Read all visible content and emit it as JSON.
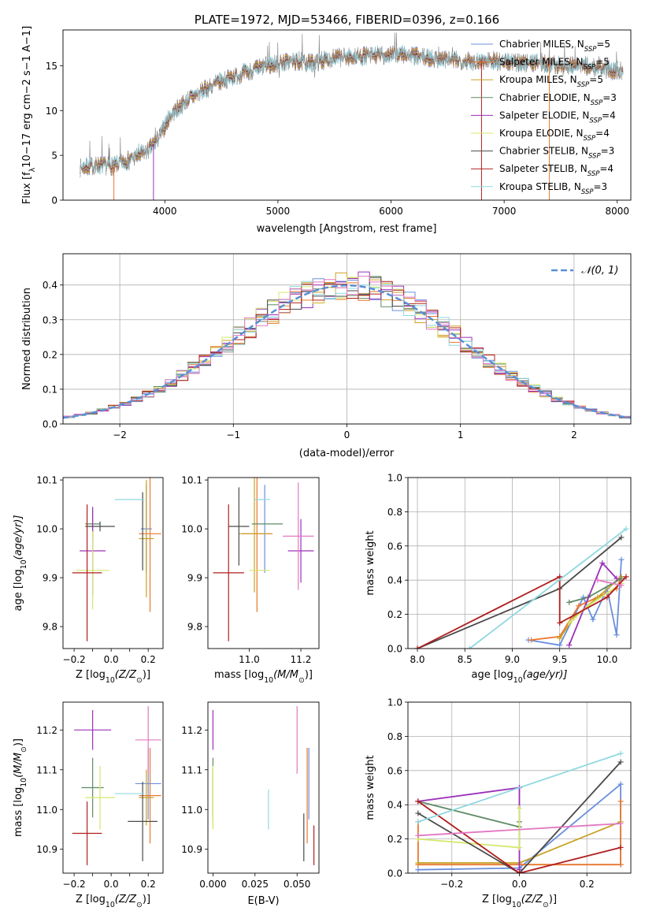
{
  "chart_data": [
    {
      "panel": "spectrum",
      "type": "line",
      "title": "PLATE=1972, MJD=53466, FIBERID=0396, z=0.166",
      "xlabel": "wavelength [Angstrom, rest frame]",
      "ylabel": "Flux [f$_\\lambda$10$^{-17}$ erg cm$^{-2}$ s$^{-1}$ A$^{-1}$]",
      "xlim": [
        3100,
        8120
      ],
      "ylim": [
        0,
        19
      ],
      "xticks": [
        4000,
        5000,
        6000,
        7000,
        8000
      ],
      "yticks": [
        0,
        5,
        10,
        15
      ],
      "legend_position": "right",
      "data_color": "#7f7f7f",
      "continuum": {
        "x": [
          3250,
          3400,
          3550,
          3700,
          3850,
          3950,
          4050,
          4200,
          4350,
          4500,
          4700,
          4900,
          5100,
          5300,
          5500,
          5700,
          5900,
          6100,
          6300,
          6500,
          6700,
          6900,
          7100,
          7300,
          7500,
          7700,
          7900,
          8050
        ],
        "y": [
          3.6,
          3.9,
          3.8,
          4.6,
          5.5,
          7.0,
          9.5,
          11.2,
          12.3,
          13.3,
          14.2,
          15.0,
          15.5,
          15.3,
          15.9,
          16.0,
          16.2,
          16.3,
          15.9,
          15.7,
          15.5,
          15.6,
          15.3,
          15.4,
          15.0,
          15.0,
          14.6,
          14.4
        ]
      },
      "series": [
        {
          "name": "Chabrier MILES, N$_{SSP}$=5",
          "label": "Chabrier MILES, N",
          "sub": "SSP",
          "suffix": "=5",
          "color": "#6b8fdc"
        },
        {
          "name": "Salpeter MILES, N$_{SSP}$=5",
          "label": "Salpeter MILES, N",
          "sub": "SSP",
          "suffix": "=5",
          "color": "#e8772e"
        },
        {
          "name": "Kroupa MILES, N$_{SSP}$=5",
          "label": "Kroupa MILES, N",
          "sub": "SSP",
          "suffix": "=5",
          "color": "#c9a227"
        },
        {
          "name": "Chabrier ELODIE, N$_{SSP}$=3",
          "label": "Chabrier ELODIE, N",
          "sub": "SSP",
          "suffix": "=3",
          "color": "#5e8a65"
        },
        {
          "name": "Salpeter ELODIE, N$_{SSP}$=4",
          "label": "Salpeter ELODIE, N",
          "sub": "SSP",
          "suffix": "=4",
          "color": "#9b30b8"
        },
        {
          "name": "Kroupa ELODIE, N$_{SSP}$=4",
          "label": "Kroupa ELODIE, N",
          "sub": "SSP",
          "suffix": "=4",
          "color": "#d4e86a"
        },
        {
          "name": "Chabrier STELIB, N$_{SSP}$=3",
          "label": "Chabrier STELIB, N",
          "sub": "SSP",
          "suffix": "=3",
          "color": "#4a4a4a"
        },
        {
          "name": "Salpeter STELIB, N$_{SSP}$=4",
          "label": "Salpeter STELIB, N",
          "sub": "SSP",
          "suffix": "=4",
          "color": "#b01e1e"
        },
        {
          "name": "Kroupa STELIB, N$_{SSP}$=3",
          "label": "Kroupa STELIB, N",
          "sub": "SSP",
          "suffix": "=3",
          "color": "#8fd8e0"
        }
      ],
      "drops_to_zero": [
        3550,
        3900,
        6800,
        7400
      ]
    },
    {
      "panel": "residuals",
      "type": "histogram",
      "xlabel": "(data-model)/error",
      "ylabel": "Normed distribution",
      "xlim": [
        -2.5,
        2.5
      ],
      "ylim": [
        0,
        0.49
      ],
      "xticks": [
        -2,
        -1,
        0,
        1,
        2
      ],
      "yticks": [
        0.0,
        0.1,
        0.2,
        0.3,
        0.4
      ],
      "grid": true,
      "bin_width": 0.1,
      "reference_curve": {
        "name": "N(0,1)",
        "legend": "𝒩(0, 1)",
        "color": "#5b8fd6",
        "style": "dashed"
      },
      "legend_position": "top-right"
    },
    {
      "panel": "age_vs_Z",
      "type": "errorbar",
      "xlabel": "Z [log$_{10}$($Z/Z_\\odot$)]",
      "xlabel_text": "Z [log",
      "xlabel_sub": "10",
      "xlabel_tail": "(Z/Z",
      "xlabel_end": ")]",
      "ylabel": "age  [log$_{10}$($age/yr$)]",
      "ylabel_text": "age  [log",
      "ylabel_sub": "10",
      "ylabel_tail": "(age/yr)]",
      "xlim": [
        -0.26,
        0.28
      ],
      "ylim": [
        9.755,
        10.105
      ],
      "xticks": [
        -0.2,
        -0.1,
        0.0,
        0.1,
        0.2
      ],
      "xticklabels": [
        "−0.2",
        "",
        "0.0",
        "",
        "0.2"
      ],
      "yticks": [
        9.8,
        9.9,
        10.0,
        10.1
      ],
      "points": [
        {
          "x": 0.19,
          "y": 10.0,
          "xerr": 0.03,
          "yerr": 0.09,
          "color": "#6b8fdc"
        },
        {
          "x": 0.21,
          "y": 9.99,
          "xerr": 0.06,
          "yerr": 0.16,
          "color": "#e8772e"
        },
        {
          "x": 0.19,
          "y": 9.98,
          "xerr": 0.04,
          "yerr": 0.12,
          "color": "#c9a227"
        },
        {
          "x": -0.1,
          "y": 10.01,
          "xerr": 0.04,
          "yerr": 0.03,
          "color": "#5e8a65"
        },
        {
          "x": -0.1,
          "y": 9.955,
          "xerr": 0.07,
          "yerr": 0.09,
          "color": "#9b30b8"
        },
        {
          "x": -0.1,
          "y": 9.915,
          "xerr": 0.09,
          "yerr": 0.08,
          "color": "#d4e86a"
        },
        {
          "x": -0.06,
          "y": 10.005,
          "xerr": 0.08,
          "yerr": 0.01,
          "color": "#4a4a4a"
        },
        {
          "x": 0.17,
          "y": 9.995,
          "xerr": 0.0,
          "yerr": 0.08,
          "color": "#4a4a4a"
        },
        {
          "x": -0.13,
          "y": 9.91,
          "xerr": 0.08,
          "yerr": 0.14,
          "color": "#b01e1e"
        },
        {
          "x": 0.1,
          "y": 10.06,
          "xerr": 0.08,
          "yerr": 0.0,
          "color": "#8fd8e0"
        }
      ]
    },
    {
      "panel": "age_vs_mass",
      "type": "errorbar",
      "xlabel": "mass [log$_{10}$($M/M_\\odot$)]",
      "xlabel_text": "mass [log",
      "xlabel_sub": "10",
      "xlabel_tail": "(M/M",
      "xlabel_end": ")]",
      "xlim": [
        10.84,
        11.27
      ],
      "ylim": [
        9.755,
        10.105
      ],
      "xticks": [
        11.0,
        11.2
      ],
      "yticks": [
        9.8,
        9.9,
        10.0,
        10.1
      ],
      "points": [
        {
          "x": 11.06,
          "y": 10.0,
          "xerr": 0.0,
          "yerr": 0.09,
          "color": "#6b8fdc"
        },
        {
          "x": 11.03,
          "y": 9.99,
          "xerr": 0.06,
          "yerr": 0.16,
          "color": "#e8772e"
        },
        {
          "x": 11.02,
          "y": 9.99,
          "xerr": 0.06,
          "yerr": 0.12,
          "color": "#c9a227"
        },
        {
          "x": 11.07,
          "y": 10.01,
          "xerr": 0.06,
          "yerr": 0.0,
          "color": "#5e8a65"
        },
        {
          "x": 11.2,
          "y": 9.955,
          "xerr": 0.05,
          "yerr": 0.065,
          "color": "#9b30b8"
        },
        {
          "x": 11.04,
          "y": 9.915,
          "xerr": 0.04,
          "yerr": 0.0,
          "color": "#d4e86a"
        },
        {
          "x": 10.96,
          "y": 10.005,
          "xerr": 0.04,
          "yerr": 0.08,
          "color": "#4a4a4a"
        },
        {
          "x": 10.92,
          "y": 9.91,
          "xerr": 0.06,
          "yerr": 0.14,
          "color": "#b01e1e"
        },
        {
          "x": 11.05,
          "y": 10.06,
          "xerr": 0.03,
          "yerr": 0.0,
          "color": "#8fd8e0"
        },
        {
          "x": 11.19,
          "y": 9.985,
          "xerr": 0.06,
          "yerr": 0.11,
          "color": "#e377c2"
        }
      ]
    },
    {
      "panel": "weight_vs_age",
      "type": "line",
      "xlabel": "age  [log$_{10}$($age/yr$)]",
      "xlabel_text": "age  [log",
      "xlabel_sub": "10",
      "xlabel_tail": "(age/yr)]",
      "ylabel": "mass weight",
      "xlim": [
        7.9,
        10.25
      ],
      "ylim": [
        0,
        1
      ],
      "xticks": [
        8.0,
        8.5,
        9.0,
        9.5,
        10.0
      ],
      "yticks": [
        0.0,
        0.2,
        0.4,
        0.6,
        0.8,
        1.0
      ],
      "grid": true,
      "series": [
        {
          "color": "#6b8fdc",
          "x": [
            9.17,
            9.5,
            9.75,
            9.85,
            10.0,
            10.1,
            10.15
          ],
          "y": [
            0.05,
            0.02,
            0.3,
            0.17,
            0.35,
            0.08,
            0.52
          ]
        },
        {
          "color": "#e8772e",
          "x": [
            9.2,
            9.5,
            9.7,
            10.1,
            10.15
          ],
          "y": [
            0.05,
            0.07,
            0.25,
            0.35,
            0.42
          ]
        },
        {
          "color": "#c9a227",
          "x": [
            9.5,
            9.65,
            9.9,
            10.15
          ],
          "y": [
            0.06,
            0.18,
            0.3,
            0.42
          ]
        },
        {
          "color": "#5e8a65",
          "x": [
            9.6,
            9.8,
            10.15
          ],
          "y": [
            0.27,
            0.3,
            0.41
          ]
        },
        {
          "color": "#9b30b8",
          "x": [
            9.6,
            9.95,
            10.1
          ],
          "y": [
            0.02,
            0.5,
            0.41
          ]
        },
        {
          "color": "#d4e86a",
          "x": [
            9.6,
            9.8,
            10.15
          ],
          "y": [
            0.15,
            0.25,
            0.38
          ]
        },
        {
          "color": "#4a4a4a",
          "x": [
            8.0,
            9.5,
            10.15
          ],
          "y": [
            0.0,
            0.35,
            0.65
          ]
        },
        {
          "color": "#b01e1e",
          "x": [
            8.0,
            9.5,
            9.5,
            10.0,
            10.2
          ],
          "y": [
            0.0,
            0.42,
            0.15,
            0.3,
            0.42
          ]
        },
        {
          "color": "#8fd8e0",
          "x": [
            8.55,
            10.2
          ],
          "y": [
            0.0,
            0.7
          ]
        },
        {
          "color": "#e377c2",
          "x": [
            9.9,
            10.15
          ],
          "y": [
            0.4,
            0.37
          ]
        }
      ]
    },
    {
      "panel": "mass_vs_Z",
      "type": "errorbar",
      "xlabel": "Z [log$_{10}$($Z/Z_\\odot$)]",
      "xlabel_text": "Z [log",
      "xlabel_sub": "10",
      "xlabel_tail": "(Z/Z",
      "xlabel_end": ")]",
      "ylabel": "mass [log$_{10}$($M/M_\\odot$)]",
      "ylabel_text": "mass [log",
      "ylabel_sub": "10",
      "ylabel_tail": "(M/M",
      "ylabel_end": ")]",
      "xlim": [
        -0.26,
        0.28
      ],
      "ylim": [
        10.84,
        11.27
      ],
      "xticks": [
        -0.2,
        -0.1,
        0.0,
        0.1,
        0.2
      ],
      "xticklabels": [
        "−0.2",
        "",
        "0.0",
        "",
        "0.2"
      ],
      "yticks": [
        10.9,
        11.0,
        11.1,
        11.2
      ],
      "points": [
        {
          "x": 0.2,
          "y": 11.065,
          "xerr": 0.07,
          "yerr": 0.09,
          "color": "#6b8fdc"
        },
        {
          "x": 0.21,
          "y": 11.035,
          "xerr": 0.06,
          "yerr": 0.12,
          "color": "#e8772e"
        },
        {
          "x": 0.19,
          "y": 11.03,
          "xerr": 0.04,
          "yerr": 0.07,
          "color": "#c9a227"
        },
        {
          "x": -0.1,
          "y": 11.055,
          "xerr": 0.06,
          "yerr": 0.075,
          "color": "#5e8a65"
        },
        {
          "x": -0.1,
          "y": 11.2,
          "xerr": 0.1,
          "yerr": 0.05,
          "color": "#9b30b8"
        },
        {
          "x": -0.06,
          "y": 11.03,
          "xerr": 0.08,
          "yerr": 0.08,
          "color": "#d4e86a"
        },
        {
          "x": 0.17,
          "y": 10.97,
          "xerr": 0.08,
          "yerr": 0.1,
          "color": "#4a4a4a"
        },
        {
          "x": -0.13,
          "y": 10.94,
          "xerr": 0.08,
          "yerr": 0.08,
          "color": "#b01e1e"
        },
        {
          "x": 0.1,
          "y": 11.04,
          "xerr": 0.08,
          "yerr": 0.0,
          "color": "#8fd8e0"
        },
        {
          "x": 0.2,
          "y": 11.175,
          "xerr": 0.07,
          "yerr": 0.085,
          "color": "#e377c2"
        }
      ]
    },
    {
      "panel": "mass_vs_ebv",
      "type": "errorbar",
      "xlabel": "E(B-V)",
      "xlim": [
        -0.003,
        0.063
      ],
      "ylim": [
        10.84,
        11.27
      ],
      "xticks": [
        0.0,
        0.025,
        0.05
      ],
      "xticklabels": [
        "0.000",
        "0.025",
        "0.050"
      ],
      "yticks": [
        10.9,
        11.0,
        11.1,
        11.2
      ],
      "points": [
        {
          "x": 0.057,
          "y": 11.065,
          "xerr": 0.0,
          "yerr": 0.09,
          "color": "#6b8fdc"
        },
        {
          "x": 0.056,
          "y": 11.035,
          "xerr": 0.0,
          "yerr": 0.12,
          "color": "#e8772e"
        },
        {
          "x": 0.0,
          "y": 11.03,
          "xerr": 0.0,
          "yerr": 0.07,
          "color": "#c9a227"
        },
        {
          "x": 0.0,
          "y": 11.055,
          "xerr": 0.0,
          "yerr": 0.075,
          "color": "#5e8a65"
        },
        {
          "x": 0.0,
          "y": 11.2,
          "xerr": 0.0,
          "yerr": 0.05,
          "color": "#9b30b8"
        },
        {
          "x": 0.0,
          "y": 11.03,
          "xerr": 0.0,
          "yerr": 0.08,
          "color": "#d4e86a"
        },
        {
          "x": 0.054,
          "y": 10.93,
          "xerr": 0.0,
          "yerr": 0.06,
          "color": "#4a4a4a"
        },
        {
          "x": 0.06,
          "y": 10.91,
          "xerr": 0.0,
          "yerr": 0.05,
          "color": "#b01e1e"
        },
        {
          "x": 0.033,
          "y": 11.0,
          "xerr": 0.0,
          "yerr": 0.05,
          "color": "#8fd8e0"
        },
        {
          "x": 0.05,
          "y": 11.175,
          "xerr": 0.0,
          "yerr": 0.085,
          "color": "#e377c2"
        }
      ]
    },
    {
      "panel": "weight_vs_Z",
      "type": "line",
      "xlabel": "Z [log$_{10}$($Z/Z_\\odot$)]",
      "xlabel_text": "Z [log",
      "xlabel_sub": "10",
      "xlabel_tail": "(Z/Z",
      "xlabel_end": ")]",
      "ylabel": "mass weight",
      "xlim": [
        -0.33,
        0.33
      ],
      "ylim": [
        0,
        1
      ],
      "xticks": [
        -0.2,
        0.0,
        0.2
      ],
      "xticklabels": [
        "−0.2",
        "0.0",
        "0.2"
      ],
      "yticks": [
        0.0,
        0.2,
        0.4,
        0.6,
        0.8,
        1.0
      ],
      "grid": true,
      "series": [
        {
          "color": "#6b8fdc",
          "x": [
            -0.3,
            0.0,
            0.3,
            0.3
          ],
          "y": [
            0.02,
            0.03,
            0.52,
            0.05
          ]
        },
        {
          "color": "#e8772e",
          "x": [
            -0.3,
            -0.3,
            0.0,
            0.3,
            0.3
          ],
          "y": [
            0.3,
            0.05,
            0.05,
            0.05,
            0.42
          ]
        },
        {
          "color": "#c9a227",
          "x": [
            -0.3,
            0.0,
            0.3
          ],
          "y": [
            0.06,
            0.06,
            0.3
          ]
        },
        {
          "color": "#5e8a65",
          "x": [
            -0.3,
            0.0,
            0.0
          ],
          "y": [
            0.42,
            0.27,
            0.3
          ]
        },
        {
          "color": "#9b30b8",
          "x": [
            -0.3,
            0.0,
            0.0
          ],
          "y": [
            0.42,
            0.5,
            0.02
          ]
        },
        {
          "color": "#d4e86a",
          "x": [
            -0.3,
            0.0,
            0.0
          ],
          "y": [
            0.2,
            0.15,
            0.38
          ]
        },
        {
          "color": "#4a4a4a",
          "x": [
            -0.3,
            0.0,
            0.3
          ],
          "y": [
            0.35,
            0.0,
            0.65
          ]
        },
        {
          "color": "#b01e1e",
          "x": [
            -0.3,
            0.0,
            0.3
          ],
          "y": [
            0.42,
            0.0,
            0.15
          ]
        },
        {
          "color": "#8fd8e0",
          "x": [
            -0.3,
            0.3
          ],
          "y": [
            0.3,
            0.7
          ]
        },
        {
          "color": "#e377c2",
          "x": [
            -0.3,
            0.3
          ],
          "y": [
            0.22,
            0.29
          ]
        }
      ]
    }
  ]
}
